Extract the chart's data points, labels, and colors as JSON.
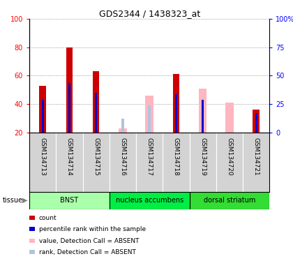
{
  "title": "GDS2344 / 1438323_at",
  "samples": [
    "GSM134713",
    "GSM134714",
    "GSM134715",
    "GSM134716",
    "GSM134717",
    "GSM134718",
    "GSM134719",
    "GSM134720",
    "GSM134721"
  ],
  "count_values": [
    53,
    80,
    63,
    null,
    null,
    61,
    null,
    null,
    36
  ],
  "rank_values": [
    43,
    55,
    48,
    null,
    null,
    47,
    43,
    null,
    34
  ],
  "absent_value": [
    null,
    null,
    null,
    23,
    46,
    null,
    51,
    41,
    null
  ],
  "absent_rank": [
    null,
    null,
    null,
    30,
    39,
    null,
    null,
    null,
    null
  ],
  "tissues": [
    {
      "label": "BNST",
      "start": 0,
      "end": 3,
      "color": "#aaffaa"
    },
    {
      "label": "nucleus accumbens",
      "start": 3,
      "end": 6,
      "color": "#00ee44"
    },
    {
      "label": "dorsal striatum",
      "start": 6,
      "end": 9,
      "color": "#33dd33"
    }
  ],
  "ylim": [
    20,
    100
  ],
  "yticks_left": [
    20,
    40,
    60,
    80,
    100
  ],
  "yticks_right_pos": [
    20,
    40,
    60,
    80,
    100
  ],
  "ytick_labels_right": [
    "0",
    "25",
    "50",
    "75",
    "100%"
  ],
  "count_color": "#cc0000",
  "rank_color": "#0000cc",
  "absent_value_color": "#ffb6c1",
  "absent_rank_color": "#b0c4de",
  "legend_items": [
    {
      "color": "#cc0000",
      "label": "count"
    },
    {
      "color": "#0000cc",
      "label": "percentile rank within the sample"
    },
    {
      "color": "#ffb6c1",
      "label": "value, Detection Call = ABSENT"
    },
    {
      "color": "#b0c4de",
      "label": "rank, Detection Call = ABSENT"
    }
  ],
  "sample_bg_color": "#d3d3d3",
  "plot_bg_color": "#ffffff"
}
